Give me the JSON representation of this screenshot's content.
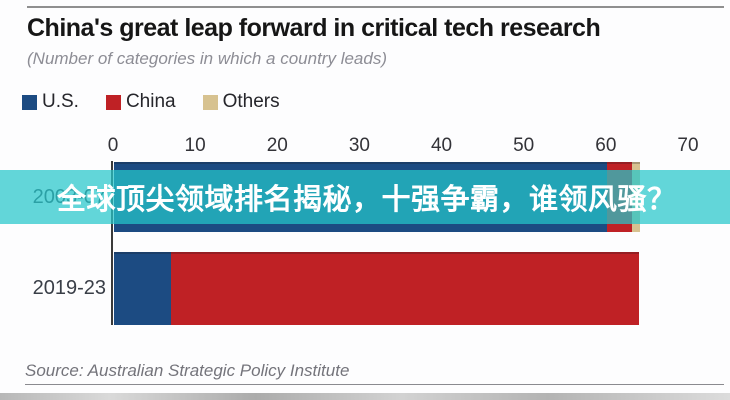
{
  "header": {
    "title": "China's great leap forward in critical tech research",
    "subtitle": "(Number of categories in which a country leads)"
  },
  "legend": {
    "items": [
      {
        "label": "U.S.",
        "color": "#1c4b82"
      },
      {
        "label": "China",
        "color": "#bf2125"
      },
      {
        "label": "Others",
        "color": "#d7c290"
      }
    ]
  },
  "overlay": {
    "text": "全球顶尖领域排名揭秘，十强争霸，谁领风骚？",
    "background": "#25c6cb",
    "text_color": "#ffffff"
  },
  "chart_data": {
    "type": "bar",
    "orientation": "horizontal",
    "stacked": true,
    "title": "China's great leap forward in critical tech research",
    "subtitle": "(Number of categories in which a country leads)",
    "categories": [
      "2003-07",
      "2019-23"
    ],
    "series": [
      {
        "name": "U.S.",
        "color": "#1c4b82",
        "values": [
          60,
          7
        ]
      },
      {
        "name": "China",
        "color": "#bf2125",
        "values": [
          3,
          57
        ]
      },
      {
        "name": "Others",
        "color": "#d7c290",
        "values": [
          1,
          0
        ]
      }
    ],
    "xlim": [
      0,
      70
    ],
    "xticks": [
      "0",
      "10",
      "20",
      "30",
      "40",
      "50",
      "60",
      "70"
    ],
    "grid": false,
    "legend_position": "top"
  },
  "footer": {
    "source": "Source: Australian Strategic Policy Institute"
  }
}
